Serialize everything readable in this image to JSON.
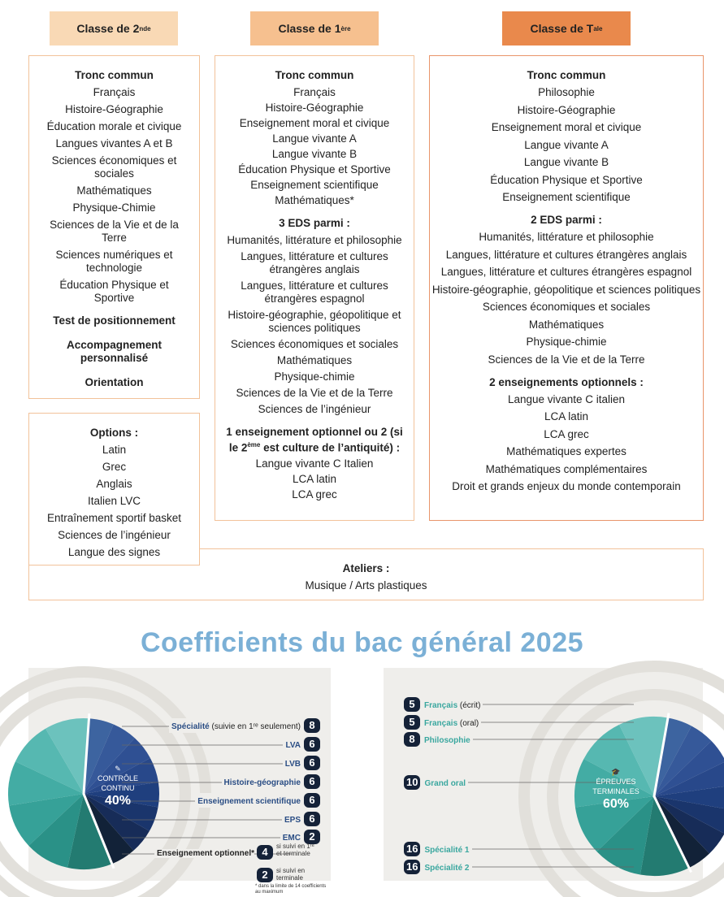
{
  "headers": [
    {
      "base": "Classe de 2",
      "sup": "nde",
      "color": "#f9d9b5"
    },
    {
      "base": "Classe de 1",
      "sup": "ère",
      "color": "#f6c08f"
    },
    {
      "base": "Classe de T",
      "sup": "ale",
      "color": "#e9894c"
    }
  ],
  "seconde": {
    "tronc_title": "Tronc commun",
    "tronc": [
      "Français",
      "Histoire-Géographie",
      "Éducation morale et civique",
      "Langues vivantes A et B",
      "Sciences économiques et sociales",
      "Mathématiques",
      "Physique-Chimie",
      "Sciences de la Vie et de la Terre",
      "Sciences numériques et technologie",
      "Éducation Physique et Sportive"
    ],
    "extra": [
      "Test de positionnement",
      "Accompagnement personnalisé",
      "Orientation"
    ],
    "options_title": "Options :",
    "options": [
      "Latin",
      "Grec",
      "Anglais",
      "Italien LVC",
      "Entraînement sportif basket",
      "Sciences de l’ingénieur",
      "Langue des signes"
    ]
  },
  "premiere": {
    "tronc_title": "Tronc commun",
    "tronc": [
      "Français",
      "Histoire-Géographie",
      "Enseignement moral et civique",
      "Langue vivante A",
      "Langue vivante B",
      "Éducation Physique et Sportive",
      "Enseignement scientifique",
      "Mathématiques*"
    ],
    "eds_title": "3 EDS parmi :",
    "eds": [
      "Humanités, littérature et philosophie",
      "Langues, littérature et cultures étrangères anglais",
      "Langues, littérature et cultures étrangères espagnol",
      "Histoire-géographie, géopolitique et sciences politiques",
      "Sciences économiques et sociales",
      "Mathématiques",
      "Physique-chimie",
      "Sciences de la Vie et de la Terre",
      "Sciences de l’ingénieur"
    ],
    "opt_title_a": "1 enseignement optionnel ou 2 (si le 2",
    "opt_title_sup": "ème",
    "opt_title_b": " est culture de l’antiquité) :",
    "options": [
      "Langue vivante C Italien",
      "LCA latin",
      "LCA grec"
    ]
  },
  "terminale": {
    "tronc_title": "Tronc commun",
    "tronc": [
      "Philosophie",
      "Histoire-Géographie",
      "Enseignement moral et civique",
      "Langue vivante A",
      "Langue vivante B",
      "Éducation Physique et Sportive",
      "Enseignement scientifique"
    ],
    "eds_title": "2 EDS parmi :",
    "eds": [
      "Humanités, littérature et philosophie",
      "Langues, littérature et cultures étrangères anglais",
      "Langues, littérature et cultures étrangères espagnol",
      "Histoire-géographie, géopolitique et sciences politiques",
      "Sciences économiques et sociales",
      "Mathématiques",
      "Physique-chimie",
      "Sciences de la Vie et de la Terre"
    ],
    "opt_title": "2 enseignements optionnels :",
    "options": [
      "Langue vivante C italien",
      "LCA latin",
      "LCA grec",
      "Mathématiques expertes",
      "Mathématiques complémentaires",
      "Droit et grands enjeux du monde contemporain"
    ]
  },
  "ateliers": {
    "title": "Ateliers :",
    "text": "Musique / Arts plastiques"
  },
  "coef_title": "Coefficients du bac général 2025",
  "controle_continu": {
    "line1": "CONTRÔLE",
    "line2": "CONTINU",
    "pct": "40%",
    "items": [
      {
        "label": "Spécialité",
        "suffix": " (suivie en 1ʳᵉ seulement)",
        "coef": "8"
      },
      {
        "label": "LVA",
        "suffix": "",
        "coef": "6"
      },
      {
        "label": "LVB",
        "suffix": "",
        "coef": "6"
      },
      {
        "label": "Histoire-géographie",
        "suffix": "",
        "coef": "6"
      },
      {
        "label": "Enseignement scientifique",
        "suffix": "",
        "coef": "6"
      },
      {
        "label": "EPS",
        "suffix": "",
        "coef": "6"
      },
      {
        "label": "EMC",
        "suffix": "",
        "coef": "2"
      }
    ],
    "optional": {
      "label": "Enseignement optionnel*",
      "coef_a": "4",
      "text_a": "si suivi en 1ʳᵉ et terminale",
      "coef_b": "2",
      "text_b": "si suivi en terminale",
      "note": "* dans la limite de 14 coefficients au maximum"
    }
  },
  "epreuves_terminales": {
    "line1": "ÉPREUVES",
    "line2": "TERMINALES",
    "pct": "60%",
    "items": [
      {
        "coef": "5",
        "label": "Français",
        "suffix": " (écrit)"
      },
      {
        "coef": "5",
        "label": "Français",
        "suffix": " (oral)"
      },
      {
        "coef": "8",
        "label": "Philosophie",
        "suffix": ""
      },
      {
        "coef": "10",
        "label": "Grand oral",
        "suffix": ""
      },
      {
        "coef": "16",
        "label": "Spécialité 1",
        "suffix": ""
      },
      {
        "coef": "16",
        "label": "Spécialité 2",
        "suffix": ""
      }
    ]
  },
  "colors": {
    "blue_dark": "#132a4a",
    "blue": "#3a5f9a",
    "teal": "#3aa79f",
    "title": "#7bb0d6",
    "badge": "#152238"
  }
}
